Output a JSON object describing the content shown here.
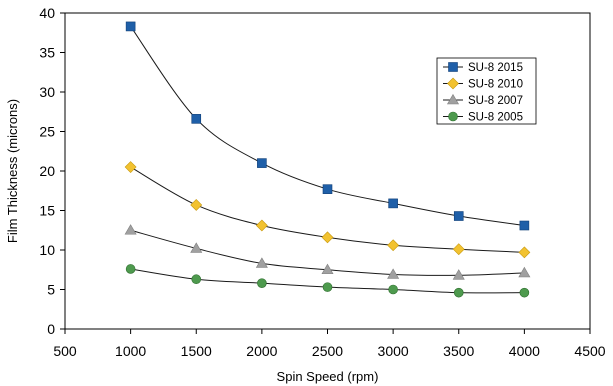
{
  "chart_data": {
    "type": "line",
    "title": "",
    "xlabel": "Spin Speed (rpm)",
    "ylabel": "Film Thickness (microns)",
    "xlim": [
      500,
      4500
    ],
    "ylim": [
      0,
      40
    ],
    "xticks": [
      500,
      1000,
      1500,
      2000,
      2500,
      3000,
      3500,
      4000,
      4500
    ],
    "yticks": [
      0,
      5,
      10,
      15,
      20,
      25,
      30,
      35,
      40
    ],
    "grid": false,
    "legend_position": "top-right",
    "x": [
      1000,
      1500,
      2000,
      2500,
      3000,
      3500,
      4000
    ],
    "series": [
      {
        "name": "SU-8 2015",
        "marker": "square",
        "color": "#1f5fa8",
        "values": [
          38.3,
          26.6,
          21.0,
          17.7,
          15.9,
          14.3,
          13.1
        ]
      },
      {
        "name": "SU-8 2010",
        "marker": "diamond",
        "color": "#f2c230",
        "values": [
          20.5,
          15.7,
          13.1,
          11.6,
          10.6,
          10.1,
          9.7
        ]
      },
      {
        "name": "SU-8 2007",
        "marker": "triangle",
        "color": "#a0a0a0",
        "values": [
          12.5,
          10.2,
          8.3,
          7.5,
          6.9,
          6.8,
          7.1
        ]
      },
      {
        "name": "SU-8 2005",
        "marker": "circle",
        "color": "#4e9a4e",
        "values": [
          7.6,
          6.3,
          5.8,
          5.3,
          5.0,
          4.6,
          4.6
        ]
      }
    ]
  }
}
